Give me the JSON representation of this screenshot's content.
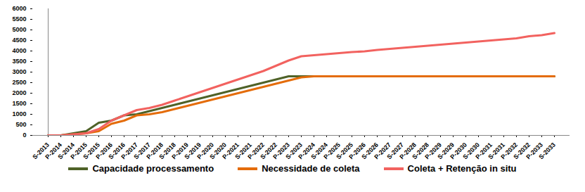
{
  "chart_data": {
    "type": "line",
    "categories": [
      "S-2013",
      "P-2014",
      "S-2014",
      "P-2015",
      "S-2015",
      "P-2016",
      "S-2016",
      "P-2017",
      "S-2017",
      "P-2018",
      "S-2018",
      "P-2019",
      "S-2019",
      "P-2020",
      "S-2020",
      "P-2021",
      "S-2021",
      "P-2022",
      "S-2022",
      "P-2023",
      "S-2023",
      "P-2024",
      "S-2024",
      "P-2025",
      "S-2025",
      "P-2026",
      "S-2026",
      "P-2027",
      "S-2027",
      "P-2028",
      "S-2028",
      "P-2029",
      "S-2029",
      "P-2030",
      "S-2030",
      "P-2031",
      "S-2031",
      "P-2032",
      "S-2032",
      "P-2033",
      "S-2033"
    ],
    "series": [
      {
        "name": "Capacidade processamento",
        "color": "#4f6228",
        "values": [
          0,
          0,
          100,
          200,
          600,
          700,
          950,
          1000,
          1150,
          1300,
          1450,
          1600,
          1750,
          1900,
          2050,
          2200,
          2350,
          2500,
          2650,
          2800,
          2800,
          2800,
          2800,
          2800,
          2800,
          2800,
          2800,
          2800,
          2800,
          2800,
          2800,
          2800,
          2800,
          2800,
          2800,
          2800,
          2800,
          2800,
          2800,
          2800,
          2800
        ]
      },
      {
        "name": "Necessidade de coleta",
        "color": "#e46c0a",
        "values": [
          0,
          0,
          50,
          100,
          200,
          550,
          700,
          950,
          1000,
          1100,
          1250,
          1400,
          1550,
          1700,
          1850,
          2000,
          2150,
          2300,
          2450,
          2600,
          2750,
          2800,
          2800,
          2800,
          2800,
          2800,
          2800,
          2800,
          2800,
          2800,
          2800,
          2800,
          2800,
          2800,
          2800,
          2800,
          2800,
          2800,
          2800,
          2800,
          2800
        ]
      },
      {
        "name": "Coleta + Retenção in situ",
        "color": "#f2625f",
        "values": [
          0,
          0,
          50,
          100,
          300,
          700,
          950,
          1200,
          1300,
          1450,
          1650,
          1850,
          2050,
          2250,
          2450,
          2650,
          2850,
          3050,
          3300,
          3550,
          3750,
          3800,
          3850,
          3900,
          3950,
          3980,
          4050,
          4100,
          4150,
          4200,
          4250,
          4300,
          4350,
          4400,
          4450,
          4500,
          4550,
          4600,
          4700,
          4750,
          4850
        ]
      }
    ],
    "ylim": [
      0,
      6000
    ],
    "yticks": [
      0,
      500,
      1000,
      1500,
      2000,
      2500,
      3000,
      3500,
      4000,
      4500,
      5000,
      5500,
      6000
    ],
    "grid": false,
    "legend": "bottom"
  }
}
